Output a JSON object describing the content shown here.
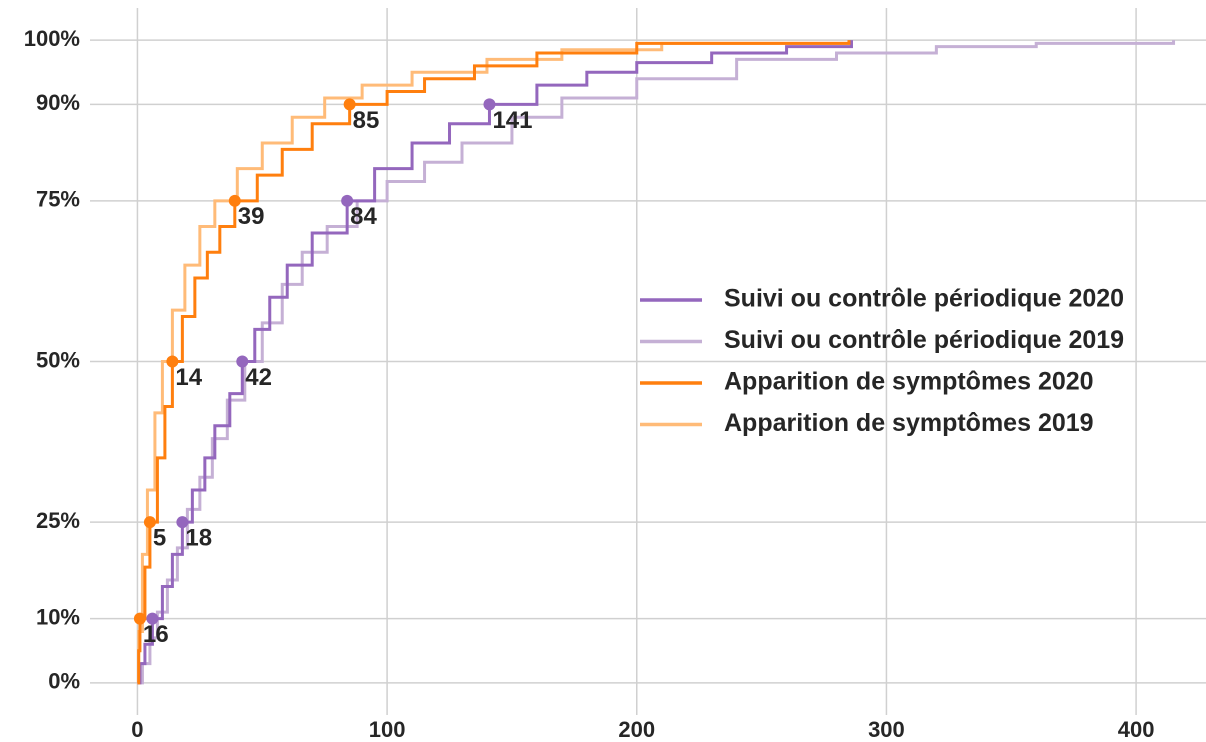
{
  "chart_data": {
    "type": "step",
    "xlim": [
      -19,
      428
    ],
    "xticks": [
      0,
      100,
      200,
      300,
      400
    ],
    "ylim": [
      -5,
      105
    ],
    "yticks": [
      {
        "value": 0,
        "label": "0%"
      },
      {
        "value": 10,
        "label": "10%"
      },
      {
        "value": 25,
        "label": "25%"
      },
      {
        "value": 50,
        "label": "50%"
      },
      {
        "value": 75,
        "label": "75%"
      },
      {
        "value": 90,
        "label": "90%"
      },
      {
        "value": 100,
        "label": "100%"
      }
    ],
    "grid": true,
    "legend": "right",
    "series": [
      {
        "name": "Suivi ou contrôle périodique 2020",
        "color": "#9467bd",
        "x": [
          0,
          1,
          3,
          6,
          10,
          14,
          18,
          22,
          27,
          31,
          37,
          42,
          47,
          53,
          60,
          70,
          84,
          95,
          110,
          125,
          141,
          160,
          180,
          200,
          230,
          260,
          286
        ],
        "values": [
          0,
          3,
          6,
          10,
          15,
          20,
          25,
          30,
          35,
          40,
          45,
          50,
          55,
          60,
          65,
          70,
          75,
          80,
          84,
          87,
          90,
          93,
          95,
          96.5,
          98,
          99,
          100
        ],
        "percentile_points": {
          "x": [
            6,
            18,
            42,
            84,
            141
          ],
          "y": [
            10,
            25,
            50,
            75,
            90
          ]
        }
      },
      {
        "name": "Suivi ou contrôle périodique 2019",
        "color": "#c5b0d5",
        "x": [
          0,
          2,
          5,
          8,
          12,
          16,
          20,
          25,
          30,
          36,
          43,
          50,
          58,
          66,
          76,
          88,
          100,
          115,
          130,
          150,
          170,
          200,
          240,
          280,
          320,
          360,
          415
        ],
        "values": [
          0,
          3,
          7,
          11,
          16,
          21,
          27,
          32,
          38,
          44,
          50,
          56,
          62,
          67,
          71,
          75,
          78,
          81,
          84,
          88,
          91,
          94,
          97,
          98,
          99,
          99.5,
          100
        ]
      },
      {
        "name": "Apparition de symptômes 2020",
        "color": "#ff7f0e",
        "x": [
          0,
          0.5,
          1,
          3,
          5,
          8,
          11,
          14,
          18,
          23,
          28,
          33,
          39,
          48,
          58,
          70,
          85,
          100,
          115,
          135,
          160,
          200,
          285
        ],
        "values": [
          0,
          5,
          10,
          18,
          25,
          35,
          43,
          50,
          57,
          63,
          67,
          71,
          75,
          79,
          83,
          87,
          90,
          92,
          94,
          96,
          98,
          99.5,
          100
        ],
        "percentile_points": {
          "x": [
            1,
            5,
            14,
            39,
            85
          ],
          "y": [
            10,
            25,
            50,
            75,
            90
          ]
        }
      },
      {
        "name": "Apparition de symptômes 2019",
        "color": "#ffbb78",
        "x": [
          0,
          0.5,
          2,
          4,
          7,
          10,
          14,
          19,
          25,
          31,
          40,
          50,
          62,
          75,
          90,
          110,
          140,
          170,
          210,
          285
        ],
        "values": [
          0,
          8,
          20,
          30,
          42,
          50,
          58,
          65,
          71,
          75,
          80,
          84,
          88,
          91,
          93,
          95,
          97,
          98.5,
          99.5,
          100
        ]
      }
    ]
  }
}
